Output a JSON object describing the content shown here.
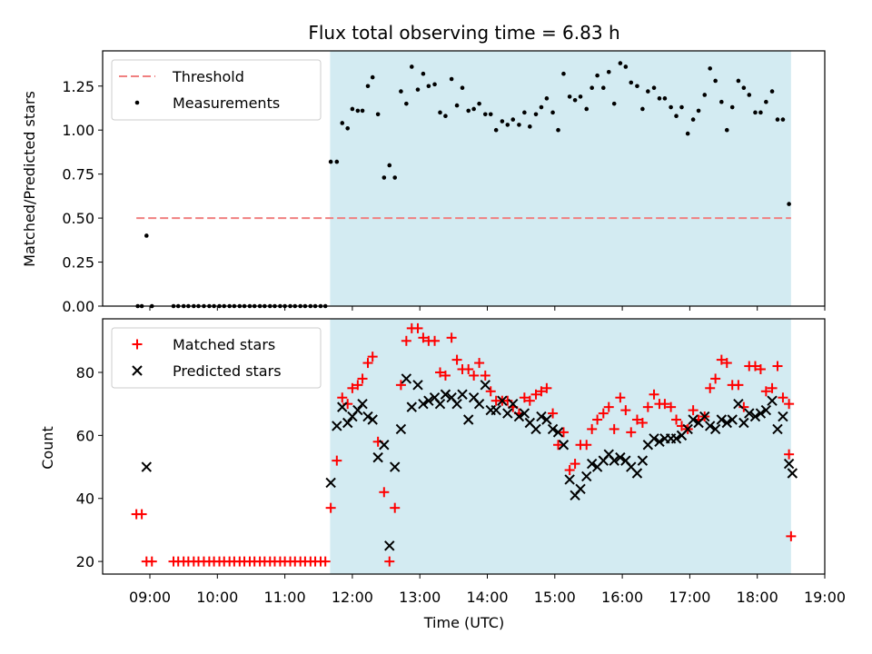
{
  "chart_data": {
    "title": "Flux total observing time = 6.83 h",
    "xlabel": "Time (UTC)",
    "x_range_hours": [
      8.3,
      19.0
    ],
    "x_ticks": [
      "09:00",
      "10:00",
      "11:00",
      "12:00",
      "13:00",
      "14:00",
      "15:00",
      "16:00",
      "17:00",
      "18:00",
      "19:00"
    ],
    "shaded_interval_hours": [
      11.67,
      18.5
    ],
    "shade_color": "#d3ebf2",
    "panels": [
      {
        "type": "scatter",
        "ylabel": "Matched/Predicted stars",
        "ylim": [
          0,
          1.45
        ],
        "y_ticks": [
          "0.00",
          "0.25",
          "0.50",
          "0.75",
          "1.00",
          "1.25"
        ],
        "legend_position": "upper-left",
        "threshold": {
          "name": "Threshold",
          "value": 0.5,
          "color": "#f08080"
        },
        "series": [
          {
            "name": "Measurements",
            "color": "#000000",
            "x": [
              8.82,
              8.88,
              8.95,
              9.03,
              9.35,
              9.42,
              9.5,
              9.57,
              9.65,
              9.72,
              9.8,
              9.88,
              9.95,
              10.03,
              10.1,
              10.18,
              10.25,
              10.33,
              10.4,
              10.48,
              10.55,
              10.63,
              10.7,
              10.78,
              10.85,
              10.93,
              11.0,
              11.08,
              11.15,
              11.23,
              11.3,
              11.38,
              11.45,
              11.53,
              11.6,
              11.68,
              11.77,
              11.85,
              11.93,
              12.0,
              12.08,
              12.15,
              12.23,
              12.3,
              12.38,
              12.47,
              12.55,
              12.63,
              12.72,
              12.8,
              12.88,
              12.97,
              13.05,
              13.13,
              13.22,
              13.3,
              13.38,
              13.47,
              13.55,
              13.63,
              13.72,
              13.8,
              13.88,
              13.97,
              14.05,
              14.13,
              14.22,
              14.3,
              14.38,
              14.47,
              14.55,
              14.63,
              14.72,
              14.8,
              14.88,
              14.97,
              15.05,
              15.13,
              15.22,
              15.3,
              15.38,
              15.47,
              15.55,
              15.63,
              15.72,
              15.8,
              15.88,
              15.97,
              16.05,
              16.13,
              16.22,
              16.3,
              16.38,
              16.47,
              16.55,
              16.63,
              16.72,
              16.8,
              16.88,
              16.97,
              17.05,
              17.13,
              17.22,
              17.3,
              17.38,
              17.47,
              17.55,
              17.63,
              17.72,
              17.8,
              17.88,
              17.97,
              18.05,
              18.13,
              18.22,
              18.3,
              18.38,
              18.47
            ],
            "y": [
              0,
              0,
              0.4,
              0,
              0,
              0,
              0,
              0,
              0,
              0,
              0,
              0,
              0,
              0,
              0,
              0,
              0,
              0,
              0,
              0,
              0,
              0,
              0,
              0,
              0,
              0,
              0,
              0,
              0,
              0,
              0,
              0,
              0,
              0,
              0,
              0.82,
              0.82,
              1.04,
              1.01,
              1.12,
              1.11,
              1.11,
              1.25,
              1.3,
              1.09,
              0.73,
              0.8,
              0.73,
              1.22,
              1.15,
              1.36,
              1.23,
              1.32,
              1.25,
              1.26,
              1.1,
              1.08,
              1.29,
              1.14,
              1.24,
              1.11,
              1.12,
              1.15,
              1.09,
              1.09,
              1.0,
              1.05,
              1.03,
              1.06,
              1.03,
              1.1,
              1.02,
              1.09,
              1.13,
              1.18,
              1.1,
              1.0,
              1.32,
              1.19,
              1.17,
              1.19,
              1.12,
              1.24,
              1.31,
              1.24,
              1.33,
              1.15,
              1.38,
              1.36,
              1.27,
              1.25,
              1.12,
              1.22,
              1.24,
              1.18,
              1.18,
              1.13,
              1.08,
              1.13,
              0.98,
              1.06,
              1.11,
              1.2,
              1.35,
              1.28,
              1.16,
              1.0,
              1.13,
              1.28,
              1.24,
              1.2,
              1.1,
              1.1,
              1.16,
              1.22,
              1.06,
              1.06,
              0.58
            ]
          }
        ]
      },
      {
        "type": "scatter",
        "ylabel": "Count",
        "ylim": [
          16,
          97
        ],
        "y_ticks": [
          "20",
          "40",
          "60",
          "80"
        ],
        "legend_position": "upper-left",
        "series": [
          {
            "name": "Matched stars",
            "marker": "plus",
            "color": "#ff0000",
            "x": [
              8.8,
              8.88,
              8.95,
              9.03,
              9.35,
              9.42,
              9.5,
              9.57,
              9.65,
              9.72,
              9.8,
              9.88,
              9.95,
              10.03,
              10.1,
              10.18,
              10.25,
              10.33,
              10.4,
              10.48,
              10.55,
              10.63,
              10.7,
              10.78,
              10.85,
              10.93,
              11.0,
              11.08,
              11.15,
              11.23,
              11.3,
              11.38,
              11.45,
              11.53,
              11.6,
              11.68,
              11.77,
              11.85,
              11.93,
              12.0,
              12.08,
              12.15,
              12.23,
              12.3,
              12.38,
              12.47,
              12.55,
              12.63,
              12.72,
              12.8,
              12.88,
              12.97,
              13.05,
              13.13,
              13.22,
              13.3,
              13.38,
              13.47,
              13.55,
              13.63,
              13.72,
              13.8,
              13.88,
              13.97,
              14.05,
              14.13,
              14.22,
              14.3,
              14.38,
              14.47,
              14.55,
              14.63,
              14.72,
              14.8,
              14.88,
              14.97,
              15.05,
              15.13,
              15.22,
              15.3,
              15.38,
              15.47,
              15.55,
              15.63,
              15.72,
              15.8,
              15.88,
              15.97,
              16.05,
              16.13,
              16.22,
              16.3,
              16.38,
              16.47,
              16.55,
              16.63,
              16.72,
              16.8,
              16.88,
              16.97,
              17.05,
              17.13,
              17.22,
              17.3,
              17.38,
              17.47,
              17.55,
              17.63,
              17.72,
              17.8,
              17.88,
              17.97,
              18.05,
              18.13,
              18.22,
              18.3,
              18.38,
              18.47
            ],
            "y": [
              35,
              35,
              20,
              20,
              20,
              20,
              20,
              20,
              20,
              20,
              20,
              20,
              20,
              20,
              20,
              20,
              20,
              20,
              20,
              20,
              20,
              20,
              20,
              20,
              20,
              20,
              20,
              20,
              20,
              20,
              20,
              20,
              20,
              20,
              20,
              37,
              52,
              72,
              70,
              75,
              76,
              78,
              83,
              85,
              58,
              42,
              20,
              37,
              76,
              90,
              94,
              94,
              91,
              90,
              90,
              80,
              79,
              91,
              84,
              81,
              81,
              79,
              83,
              79,
              74,
              71,
              71,
              71,
              69,
              67,
              72,
              71,
              73,
              74,
              75,
              67,
              57,
              61,
              49,
              51,
              57,
              57,
              62,
              65,
              67,
              69,
              62,
              72,
              68,
              61,
              65,
              64,
              69,
              73,
              70,
              70,
              69,
              65,
              63,
              62,
              68,
              65,
              66,
              75,
              78,
              84,
              83,
              76,
              76,
              69,
              82,
              82,
              81,
              74,
              75,
              82,
              72,
              70
            ],
            "x_tail": [
              18.47,
              18.5
            ],
            "y_tail": [
              54,
              28
            ]
          },
          {
            "name": "Predicted stars",
            "marker": "x",
            "color": "#000000",
            "x": [
              8.95,
              11.68,
              11.77,
              11.85,
              11.93,
              12.0,
              12.08,
              12.15,
              12.23,
              12.3,
              12.38,
              12.47,
              12.55,
              12.63,
              12.72,
              12.8,
              12.88,
              12.97,
              13.05,
              13.13,
              13.22,
              13.3,
              13.38,
              13.47,
              13.55,
              13.63,
              13.72,
              13.8,
              13.88,
              13.97,
              14.05,
              14.13,
              14.22,
              14.3,
              14.38,
              14.47,
              14.55,
              14.63,
              14.72,
              14.8,
              14.88,
              14.97,
              15.05,
              15.13,
              15.22,
              15.3,
              15.38,
              15.47,
              15.55,
              15.63,
              15.72,
              15.8,
              15.88,
              15.97,
              16.05,
              16.13,
              16.22,
              16.3,
              16.38,
              16.47,
              16.55,
              16.63,
              16.72,
              16.8,
              16.88,
              16.97,
              17.05,
              17.13,
              17.22,
              17.3,
              17.38,
              17.47,
              17.55,
              17.63,
              17.72,
              17.8,
              17.88,
              17.97,
              18.05,
              18.13,
              18.22,
              18.3,
              18.38,
              18.47,
              18.52
            ],
            "y": [
              50,
              45,
              63,
              69,
              64,
              66,
              68,
              70,
              66,
              65,
              53,
              57,
              25,
              50,
              62,
              78,
              69,
              76,
              70,
              71,
              72,
              70,
              73,
              72,
              70,
              73,
              65,
              72,
              70,
              76,
              68,
              68,
              71,
              67,
              70,
              66,
              67,
              64,
              62,
              66,
              65,
              62,
              61,
              57,
              46,
              41,
              43,
              47,
              51,
              50,
              52,
              54,
              52,
              53,
              52,
              50,
              48,
              52,
              57,
              59,
              58,
              59,
              59,
              59,
              60,
              62,
              65,
              64,
              66,
              63,
              62,
              65,
              64,
              65,
              70,
              64,
              67,
              66,
              67,
              68,
              71,
              62,
              66,
              51,
              48
            ]
          }
        ]
      }
    ]
  }
}
